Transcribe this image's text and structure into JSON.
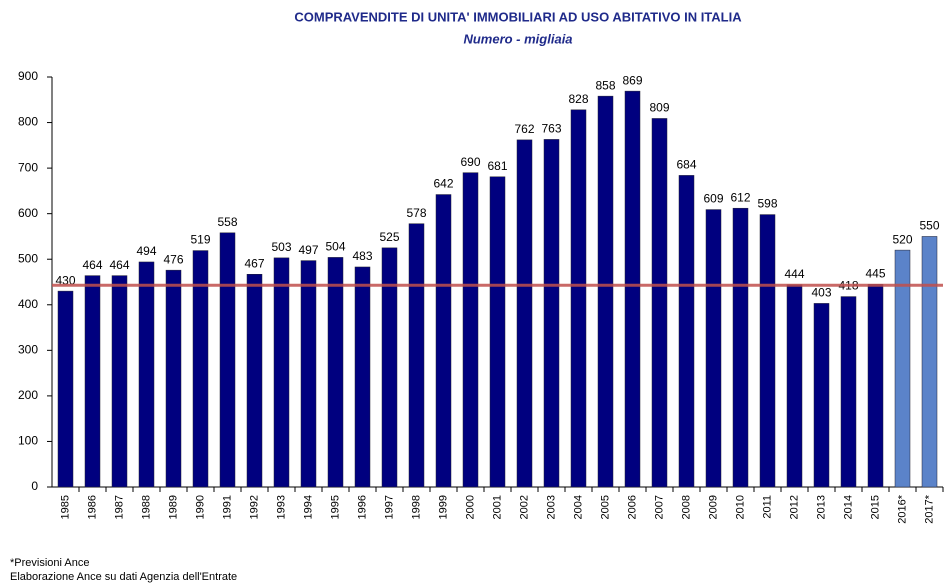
{
  "chart_data": {
    "type": "bar",
    "title": "COMPRAVENDITE DI UNITA' IMMOBILIARI AD USO ABITATIVO IN ITALIA",
    "subtitle": "Numero - migliaia",
    "categories": [
      "1985",
      "1986",
      "1987",
      "1988",
      "1989",
      "1990",
      "1991",
      "1992",
      "1993",
      "1994",
      "1995",
      "1996",
      "1997",
      "1998",
      "1999",
      "2000",
      "2001",
      "2002",
      "2003",
      "2004",
      "2005",
      "2006",
      "2007",
      "2008",
      "2009",
      "2010",
      "2011",
      "2012",
      "2013",
      "2014",
      "2015",
      "2016*",
      "2017*"
    ],
    "values": [
      430,
      464,
      464,
      494,
      476,
      519,
      558,
      467,
      503,
      497,
      504,
      483,
      525,
      578,
      642,
      690,
      681,
      762,
      763,
      828,
      858,
      869,
      809,
      684,
      609,
      612,
      598,
      444,
      403,
      418,
      445,
      520,
      550
    ],
    "colors": [
      "#00007f",
      "#00007f",
      "#00007f",
      "#00007f",
      "#00007f",
      "#00007f",
      "#00007f",
      "#00007f",
      "#00007f",
      "#00007f",
      "#00007f",
      "#00007f",
      "#00007f",
      "#00007f",
      "#00007f",
      "#00007f",
      "#00007f",
      "#00007f",
      "#00007f",
      "#00007f",
      "#00007f",
      "#00007f",
      "#00007f",
      "#00007f",
      "#00007f",
      "#00007f",
      "#00007f",
      "#00007f",
      "#00007f",
      "#00007f",
      "#00007f",
      "#5b83c9",
      "#5b83c9"
    ],
    "ylim": [
      0,
      900
    ],
    "yticks": [
      0,
      100,
      200,
      300,
      400,
      500,
      600,
      700,
      800,
      900
    ],
    "grid": false,
    "reference_line": {
      "value": 443,
      "color": "#c0504d"
    },
    "notes": [
      "*Previsioni  Ance",
      "Elaborazione  Ance su dati  Agenzia dell'Entrate"
    ]
  }
}
